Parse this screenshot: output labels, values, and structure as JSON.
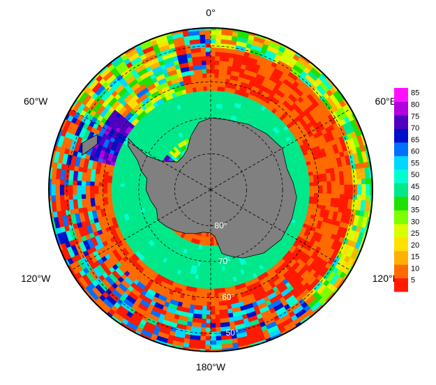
{
  "chart_data": {
    "type": "heatmap",
    "projection": "south-polar-stereographic",
    "title": "",
    "longitude_labels": [
      "0°",
      "60°E",
      "120°E",
      "180°W",
      "120°W",
      "60°W"
    ],
    "longitude_values": [
      0,
      60,
      120,
      180,
      -120,
      -60
    ],
    "latitude_labels": [
      "80°",
      "70°",
      "60°",
      "50°"
    ],
    "latitude_values": [
      -80,
      -70,
      -60,
      -50
    ],
    "map_extent_lat": [
      -90,
      -45
    ],
    "colorbar": {
      "ticks": [
        85,
        80,
        75,
        70,
        65,
        60,
        55,
        50,
        45,
        40,
        35,
        30,
        25,
        20,
        15,
        10,
        5
      ],
      "range": [
        0,
        87
      ],
      "placement": "right",
      "colors": [
        "#ff1a00",
        "#ff6a00",
        "#ffb000",
        "#ffe000",
        "#d8ff00",
        "#7dff00",
        "#1fe000",
        "#00e88a",
        "#00ffd0",
        "#00d8ff",
        "#0070ff",
        "#0010c8",
        "#5000c0",
        "#b000e0",
        "#ff10ff"
      ]
    },
    "regions": [
      {
        "name": "ice-zone",
        "lat_range": [
          -74,
          -62
        ],
        "value": 45
      },
      {
        "name": "open-ocean-east",
        "lon_range": [
          0,
          130
        ],
        "value": 5
      },
      {
        "name": "open-ocean-pacific",
        "lon_range": [
          130,
          240
        ],
        "value": 10
      },
      {
        "name": "weddell-west",
        "lon_range": [
          -75,
          -50
        ],
        "value": 65
      },
      {
        "name": "drake-passage",
        "lon_range": [
          -60,
          -20
        ],
        "value": 25
      }
    ],
    "grid": true,
    "land_color": "#808080"
  }
}
